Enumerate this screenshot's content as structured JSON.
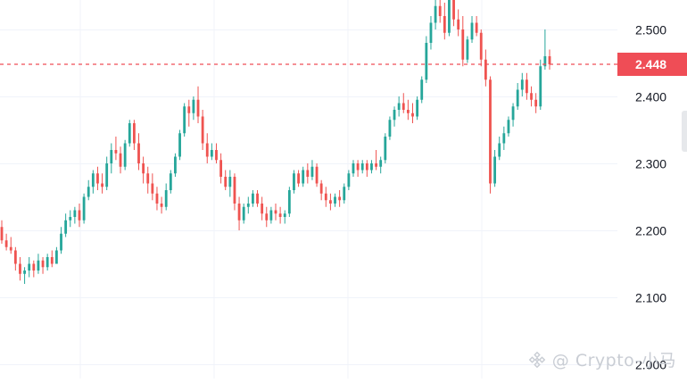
{
  "chart_data": {
    "type": "candlestick",
    "title": "",
    "y_ticks": [
      "2.500",
      "2.400",
      "2.300",
      "2.200",
      "2.100",
      "2.000"
    ],
    "y_tick_values": [
      2.5,
      2.4,
      2.3,
      2.2,
      2.1,
      2.0
    ],
    "ylim": [
      1.98,
      2.56
    ],
    "grid": true,
    "current_price": {
      "label": "2.448",
      "value": 2.448,
      "color": "#ef4d56"
    },
    "colors": {
      "up": "#26a69a",
      "down": "#ef5350",
      "grid": "#f0f3fa",
      "axis_text": "#131722"
    },
    "candles": [
      [
        2.205,
        2.215,
        2.18,
        2.185
      ],
      [
        2.185,
        2.195,
        2.17,
        2.175
      ],
      [
        2.175,
        2.19,
        2.165,
        2.17
      ],
      [
        2.17,
        2.175,
        2.14,
        2.15
      ],
      [
        2.15,
        2.16,
        2.125,
        2.135
      ],
      [
        2.135,
        2.145,
        2.12,
        2.14
      ],
      [
        2.14,
        2.16,
        2.13,
        2.15
      ],
      [
        2.15,
        2.155,
        2.13,
        2.14
      ],
      [
        2.14,
        2.165,
        2.135,
        2.155
      ],
      [
        2.155,
        2.16,
        2.135,
        2.145
      ],
      [
        2.145,
        2.165,
        2.14,
        2.16
      ],
      [
        2.16,
        2.17,
        2.145,
        2.15
      ],
      [
        2.15,
        2.175,
        2.15,
        2.17
      ],
      [
        2.17,
        2.205,
        2.165,
        2.195
      ],
      [
        2.195,
        2.225,
        2.19,
        2.215
      ],
      [
        2.215,
        2.23,
        2.205,
        2.22
      ],
      [
        2.22,
        2.235,
        2.21,
        2.23
      ],
      [
        2.23,
        2.24,
        2.205,
        2.215
      ],
      [
        2.215,
        2.255,
        2.21,
        2.25
      ],
      [
        2.25,
        2.275,
        2.245,
        2.265
      ],
      [
        2.265,
        2.29,
        2.255,
        2.285
      ],
      [
        2.285,
        2.295,
        2.26,
        2.27
      ],
      [
        2.27,
        2.285,
        2.255,
        2.265
      ],
      [
        2.265,
        2.31,
        2.26,
        2.3
      ],
      [
        2.3,
        2.33,
        2.285,
        2.32
      ],
      [
        2.32,
        2.34,
        2.305,
        2.315
      ],
      [
        2.315,
        2.325,
        2.285,
        2.295
      ],
      [
        2.295,
        2.335,
        2.29,
        2.33
      ],
      [
        2.33,
        2.365,
        2.325,
        2.36
      ],
      [
        2.36,
        2.365,
        2.32,
        2.33
      ],
      [
        2.33,
        2.345,
        2.29,
        2.3
      ],
      [
        2.3,
        2.31,
        2.27,
        2.285
      ],
      [
        2.285,
        2.295,
        2.255,
        2.27
      ],
      [
        2.27,
        2.285,
        2.245,
        2.255
      ],
      [
        2.255,
        2.265,
        2.23,
        2.24
      ],
      [
        2.24,
        2.25,
        2.225,
        2.235
      ],
      [
        2.235,
        2.27,
        2.23,
        2.26
      ],
      [
        2.26,
        2.29,
        2.255,
        2.285
      ],
      [
        2.285,
        2.315,
        2.28,
        2.31
      ],
      [
        2.31,
        2.35,
        2.305,
        2.345
      ],
      [
        2.345,
        2.39,
        2.34,
        2.385
      ],
      [
        2.385,
        2.395,
        2.355,
        2.375
      ],
      [
        2.375,
        2.4,
        2.365,
        2.395
      ],
      [
        2.395,
        2.415,
        2.36,
        2.37
      ],
      [
        2.37,
        2.38,
        2.32,
        2.33
      ],
      [
        2.33,
        2.345,
        2.3,
        2.31
      ],
      [
        2.31,
        2.33,
        2.305,
        2.32
      ],
      [
        2.32,
        2.33,
        2.3,
        2.305
      ],
      [
        2.305,
        2.315,
        2.27,
        2.28
      ],
      [
        2.28,
        2.29,
        2.26,
        2.265
      ],
      [
        2.265,
        2.29,
        2.25,
        2.28
      ],
      [
        2.28,
        2.285,
        2.23,
        2.24
      ],
      [
        2.24,
        2.25,
        2.2,
        2.215
      ],
      [
        2.215,
        2.24,
        2.21,
        2.235
      ],
      [
        2.235,
        2.25,
        2.225,
        2.24
      ],
      [
        2.24,
        2.26,
        2.235,
        2.255
      ],
      [
        2.255,
        2.26,
        2.235,
        2.24
      ],
      [
        2.24,
        2.25,
        2.215,
        2.225
      ],
      [
        2.225,
        2.235,
        2.205,
        2.215
      ],
      [
        2.215,
        2.235,
        2.21,
        2.23
      ],
      [
        2.23,
        2.24,
        2.215,
        2.225
      ],
      [
        2.225,
        2.235,
        2.21,
        2.22
      ],
      [
        2.22,
        2.23,
        2.21,
        2.225
      ],
      [
        2.225,
        2.265,
        2.22,
        2.26
      ],
      [
        2.26,
        2.29,
        2.255,
        2.285
      ],
      [
        2.285,
        2.29,
        2.265,
        2.27
      ],
      [
        2.27,
        2.295,
        2.265,
        2.29
      ],
      [
        2.29,
        2.3,
        2.27,
        2.28
      ],
      [
        2.28,
        2.305,
        2.275,
        2.295
      ],
      [
        2.295,
        2.3,
        2.265,
        2.27
      ],
      [
        2.27,
        2.275,
        2.245,
        2.255
      ],
      [
        2.255,
        2.265,
        2.235,
        2.245
      ],
      [
        2.245,
        2.255,
        2.23,
        2.24
      ],
      [
        2.24,
        2.255,
        2.235,
        2.25
      ],
      [
        2.25,
        2.26,
        2.235,
        2.245
      ],
      [
        2.245,
        2.27,
        2.24,
        2.265
      ],
      [
        2.265,
        2.29,
        2.26,
        2.285
      ],
      [
        2.285,
        2.305,
        2.28,
        2.3
      ],
      [
        2.3,
        2.305,
        2.28,
        2.29
      ],
      [
        2.29,
        2.305,
        2.285,
        2.3
      ],
      [
        2.3,
        2.305,
        2.28,
        2.29
      ],
      [
        2.29,
        2.305,
        2.285,
        2.3
      ],
      [
        2.3,
        2.32,
        2.29,
        2.295
      ],
      [
        2.295,
        2.31,
        2.285,
        2.305
      ],
      [
        2.305,
        2.345,
        2.3,
        2.34
      ],
      [
        2.34,
        2.37,
        2.335,
        2.365
      ],
      [
        2.365,
        2.385,
        2.355,
        2.38
      ],
      [
        2.38,
        2.4,
        2.37,
        2.39
      ],
      [
        2.39,
        2.405,
        2.375,
        2.38
      ],
      [
        2.38,
        2.395,
        2.365,
        2.375
      ],
      [
        2.375,
        2.39,
        2.36,
        2.37
      ],
      [
        2.37,
        2.4,
        2.365,
        2.395
      ],
      [
        2.395,
        2.43,
        2.39,
        2.425
      ],
      [
        2.425,
        2.49,
        2.42,
        2.48
      ],
      [
        2.48,
        2.52,
        2.47,
        2.51
      ],
      [
        2.51,
        2.545,
        2.5,
        2.535
      ],
      [
        2.535,
        2.56,
        2.51,
        2.52
      ],
      [
        2.52,
        2.54,
        2.485,
        2.495
      ],
      [
        2.495,
        2.555,
        2.49,
        2.545
      ],
      [
        2.545,
        2.55,
        2.505,
        2.515
      ],
      [
        2.515,
        2.53,
        2.49,
        2.5
      ],
      [
        2.5,
        2.52,
        2.445,
        2.455
      ],
      [
        2.455,
        2.49,
        2.45,
        2.485
      ],
      [
        2.485,
        2.52,
        2.48,
        2.51
      ],
      [
        2.51,
        2.52,
        2.49,
        2.495
      ],
      [
        2.495,
        2.5,
        2.445,
        2.455
      ],
      [
        2.455,
        2.47,
        2.415,
        2.425
      ],
      [
        2.425,
        2.43,
        2.255,
        2.27
      ],
      [
        2.27,
        2.32,
        2.265,
        2.31
      ],
      [
        2.31,
        2.34,
        2.305,
        2.33
      ],
      [
        2.33,
        2.355,
        2.32,
        2.345
      ],
      [
        2.345,
        2.37,
        2.34,
        2.365
      ],
      [
        2.365,
        2.39,
        2.355,
        2.385
      ],
      [
        2.385,
        2.42,
        2.38,
        2.41
      ],
      [
        2.41,
        2.435,
        2.4,
        2.425
      ],
      [
        2.425,
        2.435,
        2.395,
        2.405
      ],
      [
        2.405,
        2.415,
        2.385,
        2.395
      ],
      [
        2.395,
        2.405,
        2.375,
        2.385
      ],
      [
        2.385,
        2.455,
        2.38,
        2.445
      ],
      [
        2.445,
        2.5,
        2.44,
        2.46
      ],
      [
        2.46,
        2.47,
        2.44,
        2.448
      ]
    ]
  },
  "watermark": {
    "text": "@ Crypto-小马"
  }
}
